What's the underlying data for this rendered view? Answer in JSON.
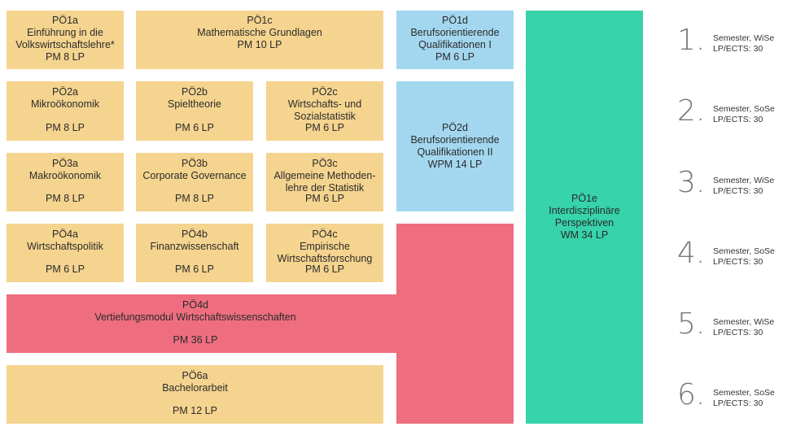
{
  "modules": {
    "p1a": {
      "code": "PÖ1a",
      "title": [
        "Einführung in die",
        "Volkswirtschaftslehre*"
      ],
      "lp": "PM 8 LP"
    },
    "p1c": {
      "code": "PÖ1c",
      "title": [
        "Mathematische Grundlagen"
      ],
      "lp": "PM 10 LP"
    },
    "p1d": {
      "code": "PÖ1d",
      "title": [
        "Berufsorientierende",
        "Qualifikationen I"
      ],
      "lp": "PM 6 LP"
    },
    "p2a": {
      "code": "PÖ2a",
      "title": [
        "Mikroökonomik"
      ],
      "lp": "PM 8 LP"
    },
    "p2b": {
      "code": "PÖ2b",
      "title": [
        "Spieltheorie"
      ],
      "lp": "PM 6 LP"
    },
    "p2c": {
      "code": "PÖ2c",
      "title": [
        "Wirtschafts- und",
        "Sozialstatistik"
      ],
      "lp": "PM 6 LP"
    },
    "p2d": {
      "code": "PÖ2d",
      "title": [
        "Berufsorientierende",
        "Qualifikationen II"
      ],
      "lp": "WPM 14 LP"
    },
    "p3a": {
      "code": "PÖ3a",
      "title": [
        "Makroökonomik"
      ],
      "lp": "PM 8 LP"
    },
    "p3b": {
      "code": "PÖ3b",
      "title": [
        "Corporate Governance"
      ],
      "lp": "PM 8 LP"
    },
    "p3c": {
      "code": "PÖ3c",
      "title": [
        "Allgemeine Methoden-",
        "lehre der Statistik"
      ],
      "lp": "PM 6 LP"
    },
    "p4a": {
      "code": "PÖ4a",
      "title": [
        "Wirtschaftspolitik"
      ],
      "lp": "PM 6 LP"
    },
    "p4b": {
      "code": "PÖ4b",
      "title": [
        "Finanzwissenschaft"
      ],
      "lp": "PM 6 LP"
    },
    "p4c": {
      "code": "PÖ4c",
      "title": [
        "Empirische",
        "Wirtschaftsforschung"
      ],
      "lp": "PM 6 LP"
    },
    "p4d": {
      "code": "PÖ4d",
      "title": [
        "Vertiefungsmodul Wirtschaftswissenschaften"
      ],
      "lp": "PM 36 LP"
    },
    "p6a": {
      "code": "PÖ6a",
      "title": [
        "Bachelorarbeit"
      ],
      "lp": "PM 12 LP"
    },
    "p1e": {
      "code": "PÖ1e",
      "title": [
        "Interdisziplinäre",
        "Perspektiven"
      ],
      "lp": "WM 34 LP"
    }
  },
  "semesters": [
    {
      "num": "1.",
      "label": "Semester, WiSe",
      "lp": "LP/ECTS: 30"
    },
    {
      "num": "2.",
      "label": "Semester, SoSe",
      "lp": "LP/ECTS: 30"
    },
    {
      "num": "3.",
      "label": "Semester, WiSe",
      "lp": "LP/ECTS: 30"
    },
    {
      "num": "4.",
      "label": "Semester, SoSe",
      "lp": "LP/ECTS: 30"
    },
    {
      "num": "5.",
      "label": "Semester, WiSe",
      "lp": "LP/ECTS: 30"
    },
    {
      "num": "6.",
      "label": "Semester, SoSe",
      "lp": "LP/ECTS: 30"
    }
  ],
  "colors": {
    "pflicht": "#f5d48f",
    "beruf": "#a3d7ef",
    "vertiefung": "#ee6e80",
    "interdisziplinaer": "#37d3aa"
  }
}
